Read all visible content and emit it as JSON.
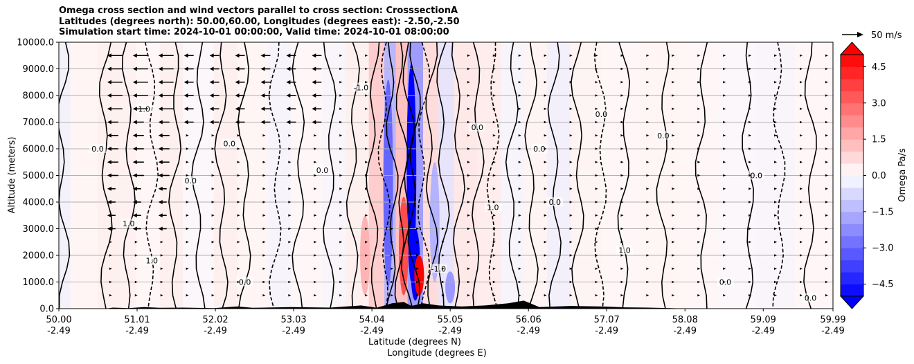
{
  "title_lines": [
    "Omega cross section and wind vectors parallel to cross section: CrosssectionA",
    "Latitudes (degrees north): 50.00,60.00, Longitudes (degrees east): -2.50,-2.50",
    "Simulation start time: 2024-10-01 00:00:00, Valid time: 2024-10-01 08:00:00"
  ],
  "chart_data": {
    "type": "heatmap",
    "title": "Omega cross section and wind vectors parallel to cross section: CrosssectionA",
    "ylabel": "Altitude (meters)",
    "xlabel_lines": [
      "Latitude (degrees N)",
      "Longitude (degrees E)"
    ],
    "xlim": [
      50.0,
      59.99
    ],
    "ylim": [
      0,
      10000
    ],
    "x_ticks": [
      {
        "lat": "50.00",
        "lon": "-2.49"
      },
      {
        "lat": "51.01",
        "lon": "-2.49"
      },
      {
        "lat": "52.02",
        "lon": "-2.49"
      },
      {
        "lat": "53.03",
        "lon": "-2.49"
      },
      {
        "lat": "54.04",
        "lon": "-2.49"
      },
      {
        "lat": "55.05",
        "lon": "-2.49"
      },
      {
        "lat": "56.06",
        "lon": "-2.49"
      },
      {
        "lat": "57.07",
        "lon": "-2.49"
      },
      {
        "lat": "58.08",
        "lon": "-2.49"
      },
      {
        "lat": "59.09",
        "lon": "-2.49"
      },
      {
        "lat": "59.99",
        "lon": "-2.49"
      }
    ],
    "y_ticks": [
      "0.0",
      "1000.0",
      "2000.0",
      "3000.0",
      "4000.0",
      "5000.0",
      "6000.0",
      "7000.0",
      "8000.0",
      "9000.0",
      "10000.0"
    ],
    "colorbar": {
      "label": "Omega Pa/s",
      "range": [
        -5.0,
        5.0
      ],
      "ticks": [
        "4.5",
        "3.0",
        "1.5",
        "0.0",
        "−1.5",
        "−3.0",
        "−4.5"
      ],
      "extend": "both"
    },
    "quiver_key": "50 m/s",
    "contour_labels": [
      "0.0",
      "1.0",
      "-1.0"
    ],
    "colors": {
      "positive": "#ff0000",
      "negative": "#0000ff",
      "neutral": "#ffffff",
      "grid": "#b0b0b0",
      "terrain": "#000000"
    },
    "omega_bands": [
      {
        "x": 50.0,
        "omega": -0.25
      },
      {
        "x": 50.15,
        "omega": 0.15
      },
      {
        "x": 50.5,
        "omega": 0.3
      },
      {
        "x": 50.8,
        "omega": 0.25
      },
      {
        "x": 51.0,
        "omega": 0.1
      },
      {
        "x": 51.3,
        "omega": 0.3
      },
      {
        "x": 51.6,
        "omega": -0.1
      },
      {
        "x": 52.0,
        "omega": 0.3
      },
      {
        "x": 52.3,
        "omega": 0.15
      },
      {
        "x": 52.7,
        "omega": -0.2
      },
      {
        "x": 53.0,
        "omega": 0.1
      },
      {
        "x": 53.4,
        "omega": -0.15
      },
      {
        "x": 53.7,
        "omega": 0.3
      },
      {
        "x": 54.0,
        "omega": 1.2
      },
      {
        "x": 54.2,
        "omega": -1.8
      },
      {
        "x": 54.35,
        "omega": 1.5
      },
      {
        "x": 54.5,
        "omega": -2.5
      },
      {
        "x": 54.7,
        "omega": 0.8
      },
      {
        "x": 54.9,
        "omega": -0.6
      },
      {
        "x": 55.1,
        "omega": 0.5
      },
      {
        "x": 55.4,
        "omega": 0.4
      },
      {
        "x": 55.7,
        "omega": -0.2
      },
      {
        "x": 56.0,
        "omega": 0.2
      },
      {
        "x": 56.3,
        "omega": -0.3
      },
      {
        "x": 56.6,
        "omega": 0.2
      },
      {
        "x": 57.0,
        "omega": 0.1
      },
      {
        "x": 57.5,
        "omega": 0.15
      },
      {
        "x": 58.0,
        "omega": 0.1
      },
      {
        "x": 58.5,
        "omega": -0.1
      },
      {
        "x": 59.0,
        "omega": -0.15
      },
      {
        "x": 59.5,
        "omega": 0.1
      },
      {
        "x": 59.99,
        "omega": 0.1
      }
    ]
  }
}
